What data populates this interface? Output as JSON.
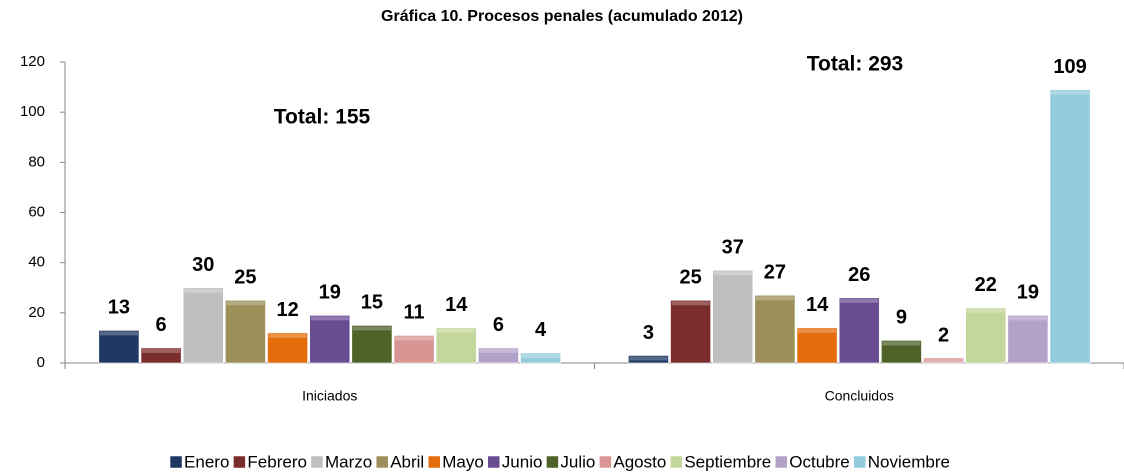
{
  "chart_data": {
    "type": "bar",
    "title": "Gráfica 10. Procesos penales (acumulado 2012)",
    "categories": [
      "Iniciados",
      "Concluidos"
    ],
    "series": [
      {
        "name": "Enero",
        "color": "#1f3864",
        "values": [
          13,
          3
        ]
      },
      {
        "name": "Febrero",
        "color": "#7b2c2c",
        "values": [
          6,
          25
        ]
      },
      {
        "name": "Marzo",
        "color": "#bfbfbf",
        "values": [
          30,
          37
        ]
      },
      {
        "name": "Abril",
        "color": "#9c8f5a",
        "values": [
          25,
          27
        ]
      },
      {
        "name": "Mayo",
        "color": "#e46c0a",
        "values": [
          12,
          14
        ]
      },
      {
        "name": "Junio",
        "color": "#6a4c93",
        "values": [
          19,
          26
        ]
      },
      {
        "name": "Julio",
        "color": "#4f6228",
        "values": [
          15,
          9
        ]
      },
      {
        "name": "Agosto",
        "color": "#d99594",
        "values": [
          11,
          2
        ]
      },
      {
        "name": "Septiembre",
        "color": "#c3d69b",
        "values": [
          14,
          22
        ]
      },
      {
        "name": "Octubre",
        "color": "#b3a2c7",
        "values": [
          6,
          19
        ]
      },
      {
        "name": "Noviembre",
        "color": "#93cddd",
        "values": [
          4,
          109
        ]
      }
    ],
    "annotations": [
      "Total: 155",
      "Total: 293"
    ],
    "ylim": [
      0,
      120
    ],
    "yticks": [
      0,
      20,
      40,
      60,
      80,
      100,
      120
    ],
    "grid": false,
    "legend": "bottom"
  }
}
